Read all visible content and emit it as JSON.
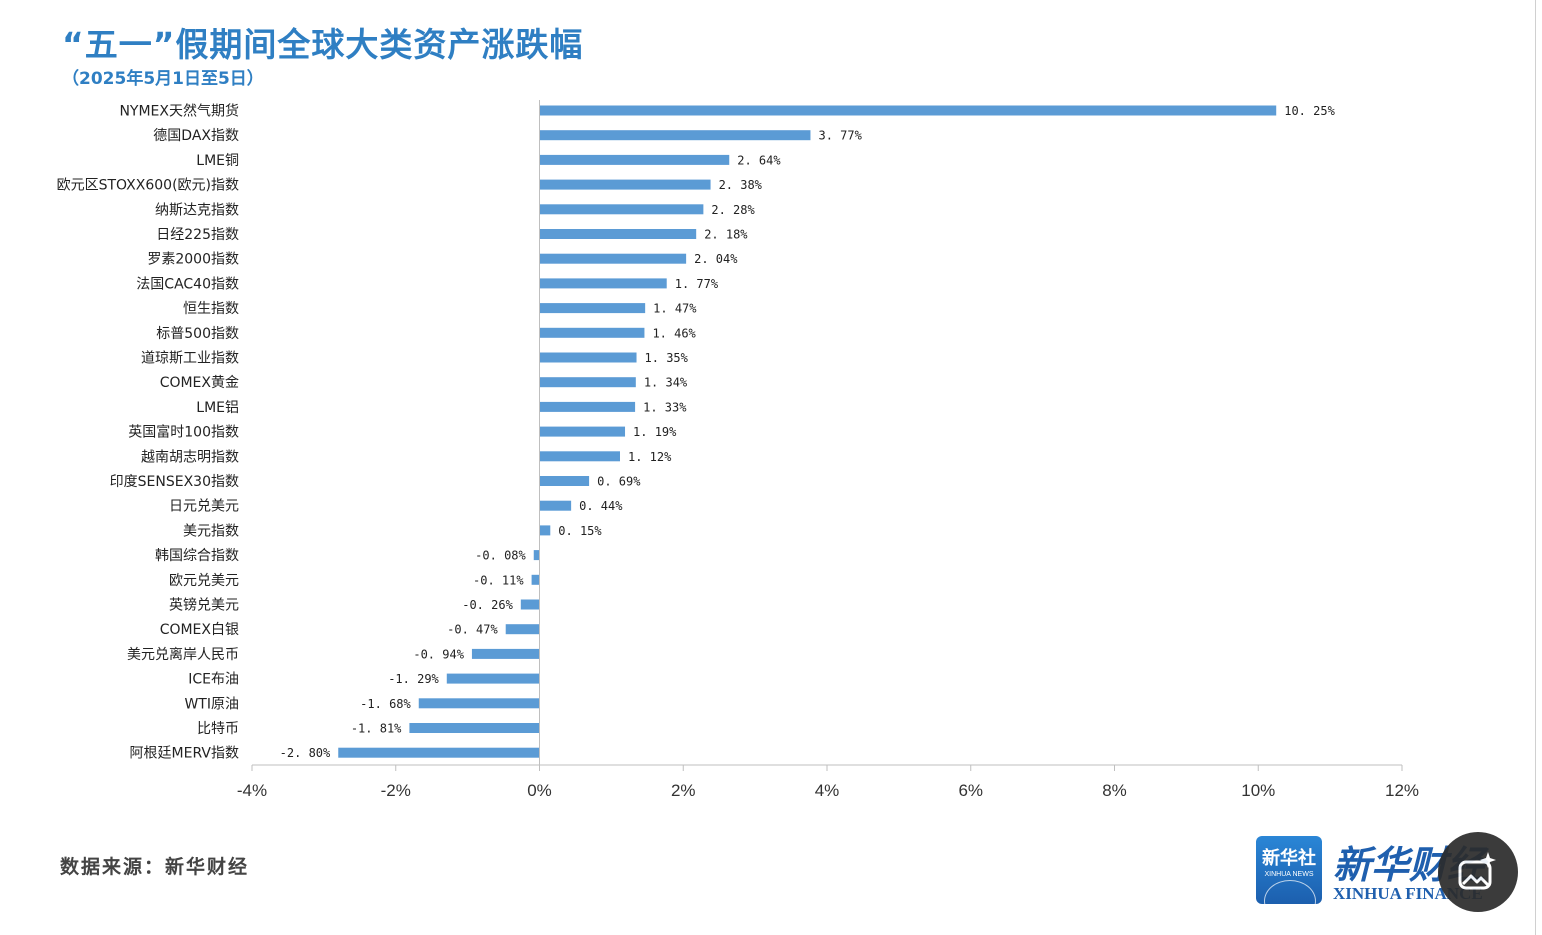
{
  "chart_data": {
    "type": "bar",
    "orientation": "horizontal",
    "title": "“五一”假期间全球大类资产涨跌幅",
    "subtitle": "（2025年5月1日至5日）",
    "categories": [
      "NYMEX天然气期货",
      "德国DAX指数",
      "LME铜",
      "欧元区STOXX600(欧元)指数",
      "纳斯达克指数",
      "日经225指数",
      "罗素2000指数",
      "法国CAC40指数",
      "恒生指数",
      "标普500指数",
      "道琼斯工业指数",
      "COMEX黄金",
      "LME铝",
      "英国富时100指数",
      "越南胡志明指数",
      "印度SENSEX30指数",
      "日元兑美元",
      "美元指数",
      "韩国综合指数",
      "欧元兑美元",
      "英镑兑美元",
      "COMEX白银",
      "美元兑离岸人民币",
      "ICE布油",
      "WTI原油",
      "比特币",
      "阿根廷MERV指数"
    ],
    "values": [
      10.25,
      3.77,
      2.64,
      2.38,
      2.28,
      2.18,
      2.04,
      1.77,
      1.47,
      1.46,
      1.35,
      1.34,
      1.33,
      1.19,
      1.12,
      0.69,
      0.44,
      0.15,
      -0.08,
      -0.11,
      -0.26,
      -0.47,
      -0.94,
      -1.29,
      -1.68,
      -1.81,
      -2.8
    ],
    "value_labels": [
      "10.25%",
      "3.77%",
      "2.64%",
      "2.38%",
      "2.28%",
      "2.18%",
      "2.04%",
      "1.77%",
      "1.47%",
      "1.46%",
      "1.35%",
      "1.34%",
      "1.33%",
      "1.19%",
      "1.12%",
      "0.69%",
      "0.44%",
      "0.15%",
      "-0.08%",
      "-0.11%",
      "-0.26%",
      "-0.47%",
      "-0.94%",
      "-1.29%",
      "-1.68%",
      "-1.81%",
      "-2.80%"
    ],
    "xlim": [
      -4,
      12
    ],
    "xticks": [
      -4,
      -2,
      0,
      2,
      4,
      6,
      8,
      10,
      12
    ],
    "xtick_labels": [
      "-4%",
      "-2%",
      "0%",
      "2%",
      "4%",
      "6%",
      "8%",
      "10%",
      "12%"
    ],
    "bar_color": "#5b9bd5",
    "grid": false,
    "xlabel": "",
    "ylabel": ""
  },
  "footer": {
    "source": "数据来源：新华财经",
    "logo_cn": "新华社",
    "logo_en": "XINHUA NEWS",
    "brand_cn": "新华财经",
    "brand_en": "XINHUA FINANCE"
  },
  "icons": {
    "gallery_button": "image-sparkle-icon"
  }
}
